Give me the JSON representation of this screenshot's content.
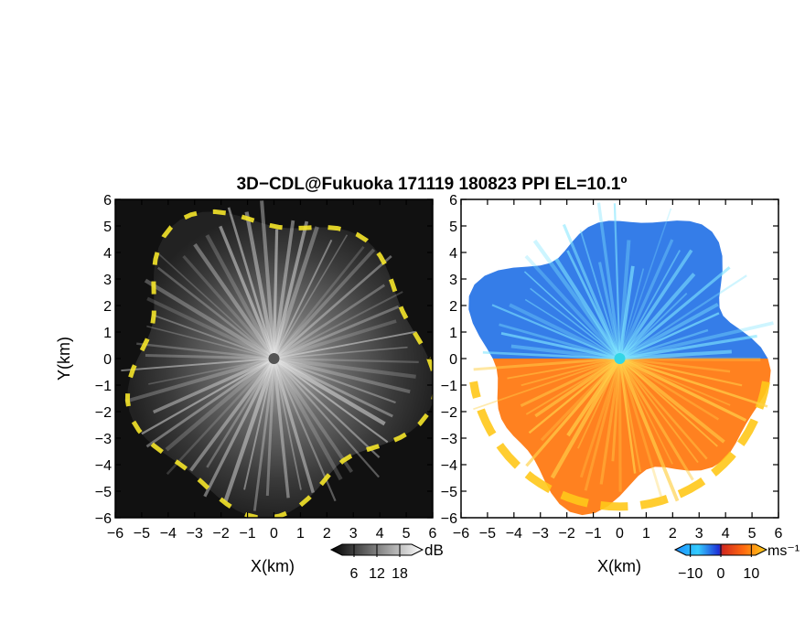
{
  "chart_data": {
    "title": "3D−CDL@Fukuoka 171119 180823 PPI EL=10.1º",
    "panels": [
      {
        "type": "heatmap",
        "variable": "reflectivity",
        "xlabel": "X(km)",
        "ylabel": "Y(km)",
        "xlim": [
          -6,
          6
        ],
        "ylim": [
          -6,
          6
        ],
        "xticks": [
          "−6",
          "−5",
          "−4",
          "−3",
          "−2",
          "−1",
          "0",
          "1",
          "2",
          "3",
          "4",
          "5",
          "6"
        ],
        "yticks": [
          "−6",
          "−5",
          "−4",
          "−3",
          "−2",
          "−1",
          "0",
          "1",
          "2",
          "3",
          "4",
          "5",
          "6"
        ],
        "colormap": "grayscale",
        "background": "#111111",
        "echo_edge_color": "#f5e62a",
        "colorbar": {
          "label": "dB",
          "ticks": [
            "6",
            "12",
            "18"
          ],
          "range": [
            0,
            24
          ]
        }
      },
      {
        "type": "heatmap",
        "variable": "doppler_velocity",
        "xlabel": "X(km)",
        "ylabel": "",
        "xlim": [
          -6,
          6
        ],
        "ylim": [
          -6,
          6
        ],
        "xticks": [
          "−6",
          "−5",
          "−4",
          "−3",
          "−2",
          "−1",
          "0",
          "1",
          "2",
          "3",
          "4",
          "5",
          "6"
        ],
        "yticks": [
          "−6",
          "−5",
          "−4",
          "−3",
          "−2",
          "−1",
          "0",
          "1",
          "2",
          "3",
          "4",
          "5",
          "6"
        ],
        "colormap": "blue-cyan-orange-yellow",
        "background": "#ffffff",
        "colorbar": {
          "label": "ms⁻¹",
          "ticks": [
            "−10",
            "0",
            "10"
          ],
          "range": [
            -15,
            15
          ]
        }
      }
    ]
  }
}
